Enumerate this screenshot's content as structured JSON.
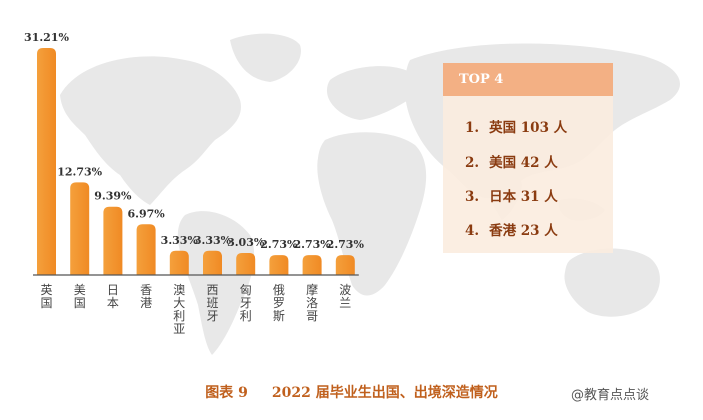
{
  "chart_data": {
    "type": "bar",
    "categories": [
      "英国",
      "美国",
      "日本",
      "香港",
      "澳大利亚",
      "西班牙",
      "匈牙利",
      "俄罗斯",
      "摩洛哥",
      "波兰"
    ],
    "values": [
      31.21,
      12.73,
      9.39,
      6.97,
      3.33,
      3.33,
      3.03,
      2.73,
      2.73,
      2.73
    ],
    "data_labels": [
      "31.21%",
      "12.73%",
      "9.39%",
      "6.97%",
      "3.33%",
      "3.33%",
      "3.03%",
      "2.73%",
      "2.73%",
      "2.73%"
    ],
    "title": "",
    "xlabel": "",
    "ylabel": "",
    "ylim": [
      0,
      31.21
    ],
    "grid": false,
    "colors": {
      "bar": "#f4a03c",
      "bar_gradient_end": "#f08a24",
      "axis": "#555555",
      "label": "#333333"
    }
  },
  "top4": {
    "header": "TOP 4",
    "items": [
      {
        "rank": "1.",
        "text": "英国 103 人"
      },
      {
        "rank": "2.",
        "text": "美国 42 人"
      },
      {
        "rank": "3.",
        "text": "日本 31 人"
      },
      {
        "rank": "4.",
        "text": "香港 23 人"
      }
    ],
    "colors": {
      "header_bg": "#f3b084",
      "panel_bg": "#fbecde",
      "text": "#8a3b10"
    }
  },
  "caption": {
    "figure": "图表 9",
    "text": "2022 届毕业生出国、出境深造情况",
    "color": "#c0601d"
  },
  "watermark": {
    "text": "@教育点点谈"
  },
  "background": {
    "map_color": "#e6e6e6"
  }
}
